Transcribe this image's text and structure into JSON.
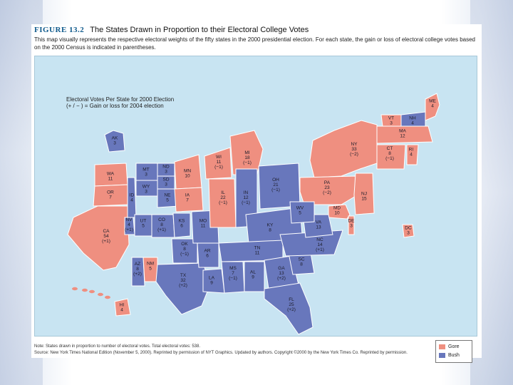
{
  "figure": {
    "number": "FIGURE 13.2",
    "title": "The States Drawn in Proportion to their Electoral College Votes",
    "caption": "This map visually represents the respective electoral weights of the fifty states in the 2000 presidential election. For each state, the gain or loss of electoral college votes based on the 2000 Census is indicated in parentheses."
  },
  "map": {
    "note_line1": "Electoral Votes Per State for 2000 Election",
    "note_line2": "(+ / − ) = Gain or loss for 2004 election",
    "colors": {
      "gore": "#ef8f80",
      "bush": "#6877bc",
      "water": "#c8e4f2"
    },
    "states": [
      {
        "abbr": "ME",
        "votes": "4",
        "change": "",
        "winner": "gore"
      },
      {
        "abbr": "VT",
        "votes": "3",
        "change": "",
        "winner": "gore"
      },
      {
        "abbr": "NH",
        "votes": "4",
        "change": "",
        "winner": "bush"
      },
      {
        "abbr": "MA",
        "votes": "12",
        "change": "",
        "winner": "gore"
      },
      {
        "abbr": "NY",
        "votes": "33",
        "change": "(−2)",
        "winner": "gore"
      },
      {
        "abbr": "CT",
        "votes": "8",
        "change": "(−1)",
        "winner": "gore"
      },
      {
        "abbr": "RI",
        "votes": "4",
        "change": "",
        "winner": "gore"
      },
      {
        "abbr": "PA",
        "votes": "23",
        "change": "(−2)",
        "winner": "gore"
      },
      {
        "abbr": "NJ",
        "votes": "15",
        "change": "",
        "winner": "gore"
      },
      {
        "abbr": "MD",
        "votes": "10",
        "change": "",
        "winner": "gore"
      },
      {
        "abbr": "DE",
        "votes": "3",
        "change": "",
        "winner": "gore"
      },
      {
        "abbr": "DC",
        "votes": "3",
        "change": "",
        "winner": "gore"
      },
      {
        "abbr": "AK",
        "votes": "3",
        "change": "",
        "winner": "bush"
      },
      {
        "abbr": "WA",
        "votes": "11",
        "change": "",
        "winner": "gore"
      },
      {
        "abbr": "OR",
        "votes": "7",
        "change": "",
        "winner": "gore"
      },
      {
        "abbr": "CA",
        "votes": "54",
        "change": "(+1)",
        "winner": "gore"
      },
      {
        "abbr": "ID",
        "votes": "4",
        "change": "",
        "winner": "bush"
      },
      {
        "abbr": "NV",
        "votes": "4",
        "change": "(+1)",
        "winner": "bush"
      },
      {
        "abbr": "MT",
        "votes": "3",
        "change": "",
        "winner": "bush"
      },
      {
        "abbr": "WY",
        "votes": "3",
        "change": "",
        "winner": "bush"
      },
      {
        "abbr": "UT",
        "votes": "5",
        "change": "",
        "winner": "bush"
      },
      {
        "abbr": "AZ",
        "votes": "8",
        "change": "(+2)",
        "winner": "bush"
      },
      {
        "abbr": "NM",
        "votes": "5",
        "change": "",
        "winner": "gore"
      },
      {
        "abbr": "CO",
        "votes": "8",
        "change": "(+1)",
        "winner": "bush"
      },
      {
        "abbr": "ND",
        "votes": "3",
        "change": "",
        "winner": "bush"
      },
      {
        "abbr": "SD",
        "votes": "3",
        "change": "",
        "winner": "bush"
      },
      {
        "abbr": "NE",
        "votes": "5",
        "change": "",
        "winner": "bush"
      },
      {
        "abbr": "KS",
        "votes": "6",
        "change": "",
        "winner": "bush"
      },
      {
        "abbr": "OK",
        "votes": "8",
        "change": "(−1)",
        "winner": "bush"
      },
      {
        "abbr": "TX",
        "votes": "32",
        "change": "(+2)",
        "winner": "bush"
      },
      {
        "abbr": "MN",
        "votes": "10",
        "change": "",
        "winner": "gore"
      },
      {
        "abbr": "IA",
        "votes": "7",
        "change": "",
        "winner": "gore"
      },
      {
        "abbr": "MO",
        "votes": "11",
        "change": "",
        "winner": "bush"
      },
      {
        "abbr": "AR",
        "votes": "6",
        "change": "",
        "winner": "bush"
      },
      {
        "abbr": "LA",
        "votes": "9",
        "change": "",
        "winner": "bush"
      },
      {
        "abbr": "WI",
        "votes": "11",
        "change": "(−1)",
        "winner": "gore"
      },
      {
        "abbr": "IL",
        "votes": "22",
        "change": "(−1)",
        "winner": "gore"
      },
      {
        "abbr": "MI",
        "votes": "18",
        "change": "(−1)",
        "winner": "gore"
      },
      {
        "abbr": "IN",
        "votes": "12",
        "change": "(−1)",
        "winner": "bush"
      },
      {
        "abbr": "OH",
        "votes": "21",
        "change": "(−1)",
        "winner": "bush"
      },
      {
        "abbr": "KY",
        "votes": "8",
        "change": "",
        "winner": "bush"
      },
      {
        "abbr": "TN",
        "votes": "11",
        "change": "",
        "winner": "bush"
      },
      {
        "abbr": "MS",
        "votes": "7",
        "change": "(−1)",
        "winner": "bush"
      },
      {
        "abbr": "AL",
        "votes": "9",
        "change": "",
        "winner": "bush"
      },
      {
        "abbr": "GA",
        "votes": "13",
        "change": "(+2)",
        "winner": "bush"
      },
      {
        "abbr": "FL",
        "votes": "25",
        "change": "(+2)",
        "winner": "bush"
      },
      {
        "abbr": "SC",
        "votes": "8",
        "change": "",
        "winner": "bush"
      },
      {
        "abbr": "NC",
        "votes": "14",
        "change": "(+1)",
        "winner": "bush"
      },
      {
        "abbr": "VA",
        "votes": "13",
        "change": "",
        "winner": "bush"
      },
      {
        "abbr": "WV",
        "votes": "5",
        "change": "",
        "winner": "bush"
      },
      {
        "abbr": "HI",
        "votes": "4",
        "change": "",
        "winner": "gore"
      }
    ]
  },
  "legend": {
    "gore": "Gore",
    "bush": "Bush"
  },
  "footnote": {
    "line1": "Note: States drawn in proportion to number of electoral votes. Total electoral votes: 538.",
    "line2": "Source: New York Times National Edition (November 5, 2000). Reprinted by permission of NYT Graphics. Updated by authors. Copyright ©2000 by the New York Times Co. Reprinted by permission."
  }
}
